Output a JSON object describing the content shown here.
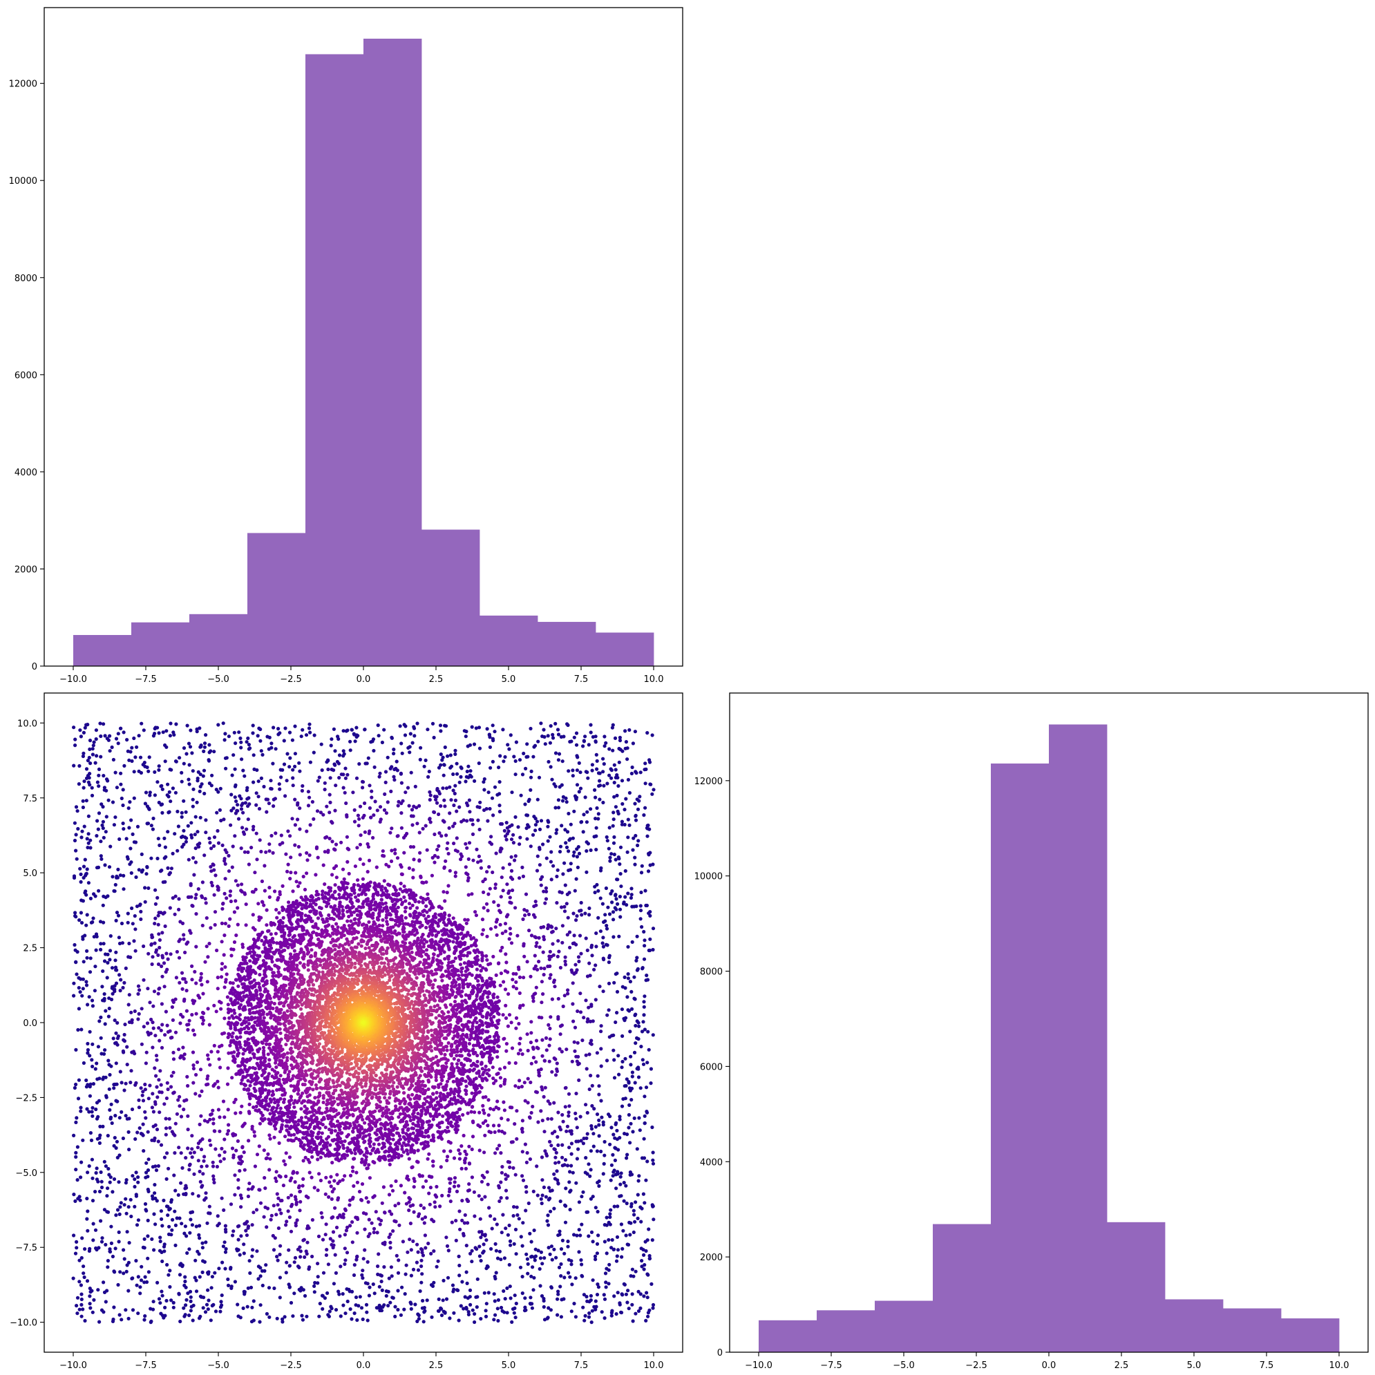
{
  "colors": {
    "hist_fill": "#9467bd",
    "background": "#ffffff",
    "axes": "#000000",
    "scatter_colormap": "plasma"
  },
  "chart_data": [
    {
      "type": "bar",
      "panel": "top-left",
      "title": "",
      "xlabel": "",
      "ylabel": "",
      "bin_edges": [
        -10,
        -8,
        -6,
        -4,
        -2,
        0,
        2,
        4,
        6,
        8,
        10
      ],
      "values": [
        640,
        900,
        1070,
        2740,
        12600,
        12920,
        2810,
        1040,
        910,
        690
      ],
      "xlim": [
        -11,
        11
      ],
      "ylim": [
        0,
        13560
      ],
      "xticks": [
        -10.0,
        -7.5,
        -5.0,
        -2.5,
        0.0,
        2.5,
        5.0,
        7.5,
        10.0
      ],
      "xtick_labels": [
        "−10.0",
        "−7.5",
        "−5.0",
        "−2.5",
        "0.0",
        "2.5",
        "5.0",
        "7.5",
        "10.0"
      ],
      "yticks": [
        0,
        2000,
        4000,
        6000,
        8000,
        10000,
        12000
      ],
      "ytick_labels": [
        "0",
        "2000",
        "4000",
        "6000",
        "8000",
        "10000",
        "12000"
      ]
    },
    {
      "type": "scatter",
      "panel": "bottom-left",
      "title": "",
      "xlabel": "",
      "ylabel": "",
      "description_of_distribution": {
        "uniform_background": {
          "xmin": -10,
          "xmax": 10,
          "ymin": -10,
          "ymax": 10,
          "n_points_shown": 5200
        },
        "dense_central_disk": {
          "center": [
            0,
            0
          ],
          "radius": 4.7,
          "n_points_shown": 6000
        },
        "color_by": "density (plasma colormap, yellow at center)"
      },
      "xlim": [
        -11,
        11
      ],
      "ylim": [
        -11,
        11
      ],
      "xticks": [
        -10.0,
        -7.5,
        -5.0,
        -2.5,
        0.0,
        2.5,
        5.0,
        7.5,
        10.0
      ],
      "xtick_labels": [
        "−10.0",
        "−7.5",
        "−5.0",
        "−2.5",
        "0.0",
        "2.5",
        "5.0",
        "7.5",
        "10.0"
      ],
      "yticks": [
        -10.0,
        -7.5,
        -5.0,
        -2.5,
        0.0,
        2.5,
        5.0,
        7.5,
        10.0
      ],
      "ytick_labels": [
        "−10.0",
        "−7.5",
        "−5.0",
        "−2.5",
        "0.0",
        "2.5",
        "5.0",
        "7.5",
        "10.0"
      ]
    },
    {
      "type": "bar",
      "panel": "bottom-right",
      "title": "",
      "xlabel": "",
      "ylabel": "",
      "bin_edges": [
        -10,
        -8,
        -6,
        -4,
        -2,
        0,
        2,
        4,
        6,
        8,
        10
      ],
      "values": [
        670,
        880,
        1080,
        2690,
        12360,
        13180,
        2730,
        1110,
        920,
        710
      ],
      "xlim": [
        -11,
        11
      ],
      "ylim": [
        0,
        13840
      ],
      "xticks": [
        -10.0,
        -7.5,
        -5.0,
        -2.5,
        0.0,
        2.5,
        5.0,
        7.5,
        10.0
      ],
      "xtick_labels": [
        "−10.0",
        "−7.5",
        "−5.0",
        "−2.5",
        "0.0",
        "2.5",
        "5.0",
        "7.5",
        "10.0"
      ],
      "yticks": [
        0,
        2000,
        4000,
        6000,
        8000,
        10000,
        12000
      ],
      "ytick_labels": [
        "0",
        "2000",
        "4000",
        "6000",
        "8000",
        "10000",
        "12000"
      ]
    }
  ]
}
